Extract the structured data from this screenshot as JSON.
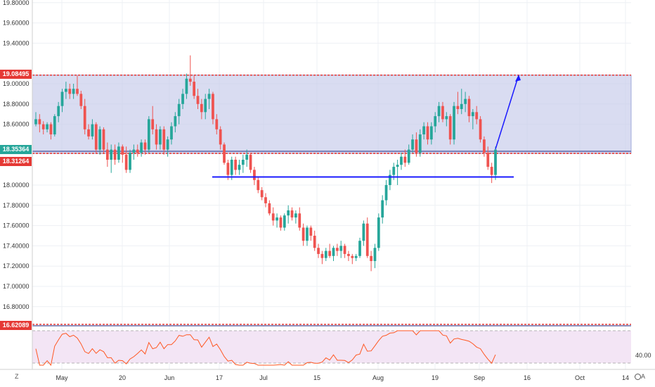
{
  "y_axis_labels": [
    "19.80000",
    "19.60000",
    "19.40000",
    "19.00000",
    "18.80000",
    "18.60000",
    "18.00000",
    "17.80000",
    "17.60000",
    "17.40000",
    "17.20000",
    "17.00000",
    "16.80000"
  ],
  "price_tags": {
    "resistance": "19.08495",
    "current": "18.35364",
    "support": "18.31264",
    "lower": "16.62089"
  },
  "rsi_label": "40.00",
  "x_axis_labels": [
    "May",
    "20",
    "Jun",
    "17",
    "Jul",
    "15",
    "Aug",
    "19",
    "Sep",
    "16",
    "Oct",
    "14"
  ],
  "corner_left": "Z",
  "corner_right": "A",
  "colors": {
    "up": "#26a69a",
    "down": "#ef5350",
    "zone": "#c5cae9",
    "line": "#1a1aff",
    "rsi": "#ff5722",
    "rsi_bg": "#f3e5f5"
  },
  "chart_data": {
    "type": "candlestick",
    "ylim": [
      16.7,
      19.85
    ],
    "zone": [
      18.3126,
      19.085
    ],
    "horizontal_level": 18.08,
    "candles": [
      [
        18.6,
        18.72,
        18.58,
        18.65
      ],
      [
        18.65,
        18.7,
        18.52,
        18.6
      ],
      [
        18.6,
        18.63,
        18.5,
        18.55
      ],
      [
        18.55,
        18.62,
        18.52,
        18.6
      ],
      [
        18.6,
        18.62,
        18.45,
        18.5
      ],
      [
        18.5,
        18.7,
        18.48,
        18.68
      ],
      [
        18.68,
        18.82,
        18.62,
        18.78
      ],
      [
        18.78,
        18.95,
        18.72,
        18.92
      ],
      [
        18.92,
        19.02,
        18.85,
        18.95
      ],
      [
        18.95,
        19.0,
        18.85,
        18.9
      ],
      [
        18.9,
        19.0,
        18.85,
        18.95
      ],
      [
        18.95,
        19.08,
        18.88,
        18.9
      ],
      [
        18.9,
        18.93,
        18.75,
        18.78
      ],
      [
        18.78,
        18.85,
        18.5,
        18.55
      ],
      [
        18.55,
        18.6,
        18.45,
        18.48
      ],
      [
        18.48,
        18.65,
        18.45,
        18.6
      ],
      [
        18.6,
        18.62,
        18.32,
        18.35
      ],
      [
        18.35,
        18.58,
        18.3,
        18.55
      ],
      [
        18.55,
        18.57,
        18.32,
        18.35
      ],
      [
        18.35,
        18.42,
        18.18,
        18.25
      ],
      [
        18.25,
        18.4,
        18.12,
        18.35
      ],
      [
        18.35,
        18.4,
        18.2,
        18.25
      ],
      [
        18.25,
        18.42,
        18.22,
        18.38
      ],
      [
        18.38,
        18.4,
        18.22,
        18.3
      ],
      [
        18.3,
        18.38,
        18.12,
        18.15
      ],
      [
        18.15,
        18.35,
        18.12,
        18.32
      ],
      [
        18.32,
        18.4,
        18.25,
        18.35
      ],
      [
        18.35,
        18.4,
        18.28,
        18.32
      ],
      [
        18.32,
        18.45,
        18.28,
        18.42
      ],
      [
        18.42,
        18.45,
        18.3,
        18.35
      ],
      [
        18.35,
        18.68,
        18.32,
        18.65
      ],
      [
        18.65,
        18.78,
        18.5,
        18.55
      ],
      [
        18.55,
        18.6,
        18.35,
        18.4
      ],
      [
        18.4,
        18.58,
        18.35,
        18.55
      ],
      [
        18.55,
        18.58,
        18.3,
        18.35
      ],
      [
        18.35,
        18.48,
        18.28,
        18.45
      ],
      [
        18.45,
        18.62,
        18.4,
        18.58
      ],
      [
        18.58,
        18.72,
        18.52,
        18.68
      ],
      [
        18.68,
        18.85,
        18.6,
        18.8
      ],
      [
        18.8,
        18.95,
        18.75,
        18.9
      ],
      [
        18.9,
        19.1,
        18.85,
        19.05
      ],
      [
        19.05,
        19.28,
        18.98,
        19.02
      ],
      [
        19.02,
        19.08,
        18.85,
        18.88
      ],
      [
        18.88,
        18.95,
        18.75,
        18.8
      ],
      [
        18.8,
        18.85,
        18.65,
        18.72
      ],
      [
        18.72,
        18.9,
        18.65,
        18.85
      ],
      [
        18.85,
        18.95,
        18.75,
        18.9
      ],
      [
        18.9,
        18.92,
        18.6,
        18.65
      ],
      [
        18.65,
        18.7,
        18.5,
        18.55
      ],
      [
        18.55,
        18.58,
        18.35,
        18.4
      ],
      [
        18.4,
        18.42,
        18.2,
        18.22
      ],
      [
        18.22,
        18.25,
        18.05,
        18.1
      ],
      [
        18.1,
        18.28,
        18.05,
        18.25
      ],
      [
        18.25,
        18.28,
        18.1,
        18.15
      ],
      [
        18.15,
        18.25,
        18.1,
        18.2
      ],
      [
        18.2,
        18.3,
        18.12,
        18.25
      ],
      [
        18.25,
        18.35,
        18.18,
        18.3
      ],
      [
        18.3,
        18.32,
        18.12,
        18.15
      ],
      [
        18.15,
        18.18,
        18.0,
        18.05
      ],
      [
        18.05,
        18.08,
        17.92,
        17.95
      ],
      [
        17.95,
        17.98,
        17.85,
        17.88
      ],
      [
        17.88,
        17.92,
        17.78,
        17.82
      ],
      [
        17.82,
        17.85,
        17.7,
        17.72
      ],
      [
        17.72,
        17.78,
        17.6,
        17.65
      ],
      [
        17.65,
        17.72,
        17.58,
        17.68
      ],
      [
        17.68,
        17.7,
        17.55,
        17.58
      ],
      [
        17.58,
        17.72,
        17.55,
        17.7
      ],
      [
        17.7,
        17.8,
        17.62,
        17.75
      ],
      [
        17.75,
        17.78,
        17.65,
        17.68
      ],
      [
        17.68,
        17.75,
        17.62,
        17.72
      ],
      [
        17.72,
        17.78,
        17.55,
        17.58
      ],
      [
        17.58,
        17.62,
        17.4,
        17.45
      ],
      [
        17.45,
        17.6,
        17.4,
        17.58
      ],
      [
        17.58,
        17.6,
        17.45,
        17.5
      ],
      [
        17.5,
        17.55,
        17.35,
        17.38
      ],
      [
        17.38,
        17.42,
        17.28,
        17.32
      ],
      [
        17.32,
        17.35,
        17.22,
        17.28
      ],
      [
        17.28,
        17.38,
        17.25,
        17.35
      ],
      [
        17.35,
        17.42,
        17.28,
        17.3
      ],
      [
        17.3,
        17.4,
        17.25,
        17.38
      ],
      [
        17.38,
        17.42,
        17.3,
        17.35
      ],
      [
        17.35,
        17.45,
        17.28,
        17.4
      ],
      [
        17.4,
        17.42,
        17.28,
        17.32
      ],
      [
        17.32,
        17.35,
        17.25,
        17.3
      ],
      [
        17.3,
        17.32,
        17.22,
        17.28
      ],
      [
        17.28,
        17.32,
        17.25,
        17.3
      ],
      [
        17.3,
        17.48,
        17.28,
        17.45
      ],
      [
        17.45,
        17.65,
        17.4,
        17.62
      ],
      [
        17.62,
        17.68,
        17.28,
        17.3
      ],
      [
        17.3,
        17.35,
        17.15,
        17.25
      ],
      [
        17.25,
        17.42,
        17.18,
        17.38
      ],
      [
        17.38,
        17.72,
        17.35,
        17.68
      ],
      [
        17.68,
        17.9,
        17.62,
        17.85
      ],
      [
        17.85,
        18.05,
        17.8,
        18.0
      ],
      [
        18.0,
        18.15,
        17.95,
        18.1
      ],
      [
        18.1,
        18.22,
        18.05,
        18.18
      ],
      [
        18.18,
        18.25,
        18.0,
        18.2
      ],
      [
        18.2,
        18.32,
        18.15,
        18.28
      ],
      [
        18.28,
        18.35,
        18.18,
        18.22
      ],
      [
        18.22,
        18.4,
        18.2,
        18.35
      ],
      [
        18.35,
        18.5,
        18.32,
        18.45
      ],
      [
        18.45,
        18.52,
        18.28,
        18.32
      ],
      [
        18.32,
        18.55,
        18.28,
        18.5
      ],
      [
        18.5,
        18.62,
        18.45,
        18.58
      ],
      [
        18.58,
        18.62,
        18.4,
        18.45
      ],
      [
        18.45,
        18.62,
        18.4,
        18.58
      ],
      [
        18.58,
        18.72,
        18.52,
        18.68
      ],
      [
        18.68,
        18.82,
        18.62,
        18.78
      ],
      [
        18.78,
        18.82,
        18.62,
        18.65
      ],
      [
        18.65,
        18.72,
        18.58,
        18.68
      ],
      [
        18.68,
        18.7,
        18.4,
        18.45
      ],
      [
        18.45,
        18.82,
        18.4,
        18.78
      ],
      [
        18.78,
        18.92,
        18.7,
        18.75
      ],
      [
        18.75,
        18.95,
        18.7,
        18.8
      ],
      [
        18.8,
        18.92,
        18.72,
        18.85
      ],
      [
        18.85,
        18.88,
        18.62,
        18.68
      ],
      [
        18.68,
        18.75,
        18.55,
        18.72
      ],
      [
        18.72,
        18.78,
        18.6,
        18.65
      ],
      [
        18.65,
        18.68,
        18.42,
        18.45
      ],
      [
        18.45,
        18.48,
        18.28,
        18.32
      ],
      [
        18.32,
        18.38,
        18.15,
        18.18
      ],
      [
        18.18,
        18.22,
        18.02,
        18.1
      ],
      [
        18.1,
        18.38,
        18.05,
        18.35
      ]
    ]
  }
}
